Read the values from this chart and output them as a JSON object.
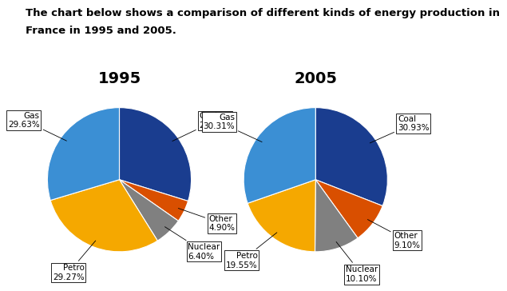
{
  "title_line1": "The chart below shows a comparison of different kinds of energy production in",
  "title_line2": "France in 1995 and 2005.",
  "year1": "1995",
  "year2": "2005",
  "values_1995": [
    29.8,
    4.9,
    6.4,
    29.27,
    29.63
  ],
  "values_2005": [
    30.93,
    9.1,
    10.1,
    19.55,
    30.31
  ],
  "colors": [
    "#1a3d8f",
    "#d94f00",
    "#808080",
    "#f5a800",
    "#3b8fd4"
  ],
  "labels_1995": [
    {
      "text": "Coal\n29.80%",
      "side": "right"
    },
    {
      "text": "Other\n4.90%",
      "side": "right"
    },
    {
      "text": "Nuclear\n6.40%",
      "side": "right"
    },
    {
      "text": "Petro\n29.27%",
      "side": "left"
    },
    {
      "text": "Gas\n29.63%",
      "side": "left"
    }
  ],
  "labels_2005": [
    {
      "text": "Coal\n30.93%",
      "side": "right"
    },
    {
      "text": "Other\n9.10%",
      "side": "right"
    },
    {
      "text": "Nuclear\n10.10%",
      "side": "right"
    },
    {
      "text": "Petro\n19.55%",
      "side": "left"
    },
    {
      "text": "Gas\n30.31%",
      "side": "left"
    }
  ],
  "startangle": 90,
  "background_color": "#ffffff",
  "title_fontsize": 9.5,
  "year_fontsize": 14,
  "pie_label_fontsize": 7.5
}
